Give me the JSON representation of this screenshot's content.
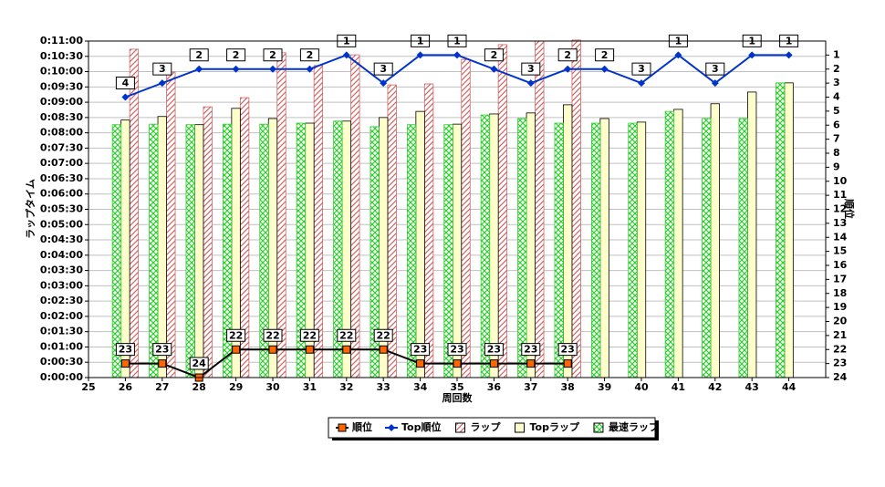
{
  "chart_data": {
    "type": "bar-line",
    "x_label": "周回数",
    "y_label": "ラップタイム",
    "y2_label": "順位",
    "x": [
      26,
      27,
      28,
      29,
      30,
      31,
      32,
      33,
      34,
      35,
      36,
      37,
      38,
      39,
      40,
      41,
      42,
      43,
      44
    ],
    "xlim": [
      25,
      45
    ],
    "xticks": [
      25,
      26,
      27,
      28,
      29,
      30,
      31,
      32,
      33,
      34,
      35,
      36,
      37,
      38,
      39,
      40,
      41,
      42,
      43,
      44
    ],
    "ylim": [
      0,
      660
    ],
    "yticks": [
      {
        "value": 0,
        "label": "0:00:00"
      },
      {
        "value": 30,
        "label": "0:00:30"
      },
      {
        "value": 60,
        "label": "0:01:00"
      },
      {
        "value": 90,
        "label": "0:01:30"
      },
      {
        "value": 120,
        "label": "0:02:00"
      },
      {
        "value": 150,
        "label": "0:02:30"
      },
      {
        "value": 180,
        "label": "0:03:00"
      },
      {
        "value": 210,
        "label": "0:03:30"
      },
      {
        "value": 240,
        "label": "0:04:00"
      },
      {
        "value": 270,
        "label": "0:04:30"
      },
      {
        "value": 300,
        "label": "0:05:00"
      },
      {
        "value": 330,
        "label": "0:05:30"
      },
      {
        "value": 360,
        "label": "0:06:00"
      },
      {
        "value": 390,
        "label": "0:06:30"
      },
      {
        "value": 420,
        "label": "0:07:00"
      },
      {
        "value": 450,
        "label": "0:07:30"
      },
      {
        "value": 480,
        "label": "0:08:00"
      },
      {
        "value": 510,
        "label": "0:08:30"
      },
      {
        "value": 540,
        "label": "0:09:00"
      },
      {
        "value": 570,
        "label": "0:09:30"
      },
      {
        "value": 600,
        "label": "0:10:00"
      },
      {
        "value": 630,
        "label": "0:10:30"
      },
      {
        "value": 660,
        "label": "0:11:00"
      }
    ],
    "y2lim": [
      24,
      0
    ],
    "y2ticks": [
      1,
      2,
      3,
      4,
      5,
      6,
      7,
      8,
      9,
      10,
      11,
      12,
      13,
      14,
      15,
      16,
      17,
      18,
      19,
      20,
      21,
      22,
      23,
      24
    ],
    "grid": true,
    "legend": "bottom",
    "series": [
      {
        "name": "順位",
        "kind": "line",
        "axis": "y2",
        "color": "#ff6600",
        "line_color": "#000000",
        "marker": "square",
        "values": [
          23,
          23,
          24,
          22,
          22,
          22,
          22,
          22,
          23,
          23,
          23,
          23,
          23,
          null,
          null,
          null,
          null,
          null,
          null
        ]
      },
      {
        "name": "Top順位",
        "kind": "line",
        "axis": "y2",
        "color": "#0033cc",
        "line_color": "#0033cc",
        "marker": "diamond",
        "values": [
          4,
          3,
          2,
          2,
          2,
          2,
          1,
          3,
          1,
          1,
          2,
          3,
          2,
          2,
          3,
          1,
          3,
          1,
          1
        ]
      },
      {
        "name": "ラップ",
        "kind": "bar",
        "color": "#cc6666",
        "pattern": "diagonal",
        "values": [
          644,
          599,
          531,
          549,
          637,
          612,
          633,
          574,
          576,
          624,
          653,
          660,
          662,
          null,
          null,
          null,
          null,
          null,
          null
        ]
      },
      {
        "name": "Topラップ",
        "kind": "bar",
        "color": "#ffffcc",
        "pattern": "solid",
        "values": [
          505,
          512,
          496,
          528,
          508,
          499,
          503,
          510,
          522,
          497,
          517,
          519,
          535,
          508,
          501,
          526,
          537,
          560,
          578
        ]
      },
      {
        "name": "最速ラップ",
        "kind": "bar",
        "color": "#33cc33",
        "pattern": "crosshatch",
        "values": [
          496,
          497,
          496,
          497,
          497,
          499,
          503,
          492,
          496,
          496,
          515,
          508,
          499,
          499,
          499,
          522,
          508,
          508,
          578
        ]
      }
    ]
  }
}
